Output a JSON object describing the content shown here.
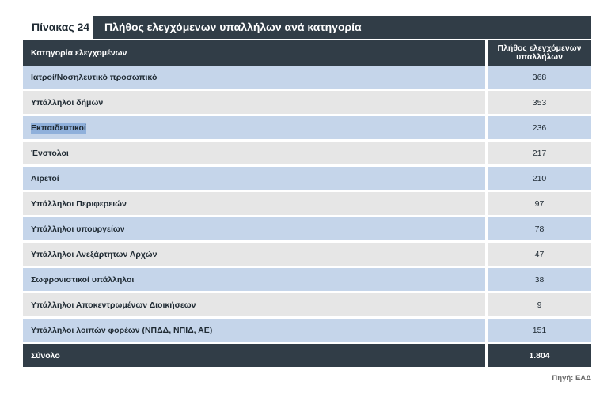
{
  "table": {
    "label": "Πίνακας 24",
    "title": "Πλήθος ελεγχόμενων υπαλλήλων ανά κατηγορία",
    "headers": [
      "Κατηγορία ελεγχομένων",
      "Πλήθος ελεγχόμενων υπαλλήλων"
    ],
    "rows": [
      {
        "category": "Ιατροί/Νοσηλευτικό προσωπικό",
        "count": "368"
      },
      {
        "category": "Υπάλληλοι δήμων",
        "count": "353"
      },
      {
        "category": "Εκπαιδευτικοί",
        "count": "236"
      },
      {
        "category": "Ένστολοι",
        "count": "217"
      },
      {
        "category": "Αιρετοί",
        "count": "210"
      },
      {
        "category": "Υπάλληλοι Περιφερειών",
        "count": "97"
      },
      {
        "category": "Υπάλληλοι υπουργείων",
        "count": "78"
      },
      {
        "category": "Υπάλληλοι Ανεξάρτητων Αρχών",
        "count": "47"
      },
      {
        "category": "Σωφρονιστικοί υπάλληλοι",
        "count": "38"
      },
      {
        "category": "Υπάλληλοι Αποκεντρωμένων Διοικήσεων",
        "count": "9"
      },
      {
        "category": "Υπάλληλοι λοιπών φορέων (ΝΠΔΔ, ΝΠΙΔ, ΑΕ)",
        "count": "151"
      }
    ],
    "total": {
      "label": "Σύνολο",
      "count": "1.804"
    }
  },
  "source": "Πηγή: ΕΑΔ",
  "colors": {
    "header_bg": "#313d47",
    "row_blue": "#c5d5ea",
    "row_grey": "#e6e6e6",
    "selection_highlight": "#8fb0db"
  }
}
